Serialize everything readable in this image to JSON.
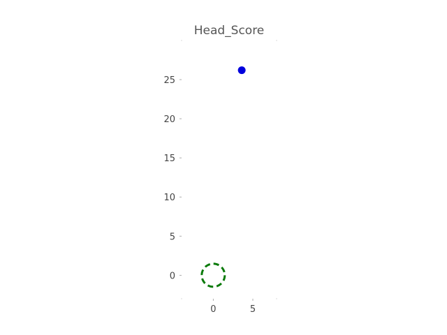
{
  "chart_data": {
    "type": "scatter",
    "title": "Head_Score",
    "xlabel": "",
    "ylabel": "",
    "xlim": [
      -4,
      8
    ],
    "ylim": [
      -3,
      30
    ],
    "x_ticks": [
      "0",
      "5"
    ],
    "y_ticks": [
      "0",
      "5",
      "10",
      "15",
      "20",
      "25"
    ],
    "x_tick_values": [
      0,
      5
    ],
    "y_tick_values": [
      0,
      5,
      10,
      15,
      20,
      25
    ],
    "grid": false,
    "legend": "none",
    "series": [
      {
        "marker": "filled-dot",
        "color": "#0000dd",
        "points": [
          {
            "x": 3.6,
            "y": 26.2
          }
        ]
      },
      {
        "marker": "dashed-circle",
        "color": "#0a7a0a",
        "points": [
          {
            "x": 0,
            "y": 0
          }
        ]
      }
    ]
  }
}
